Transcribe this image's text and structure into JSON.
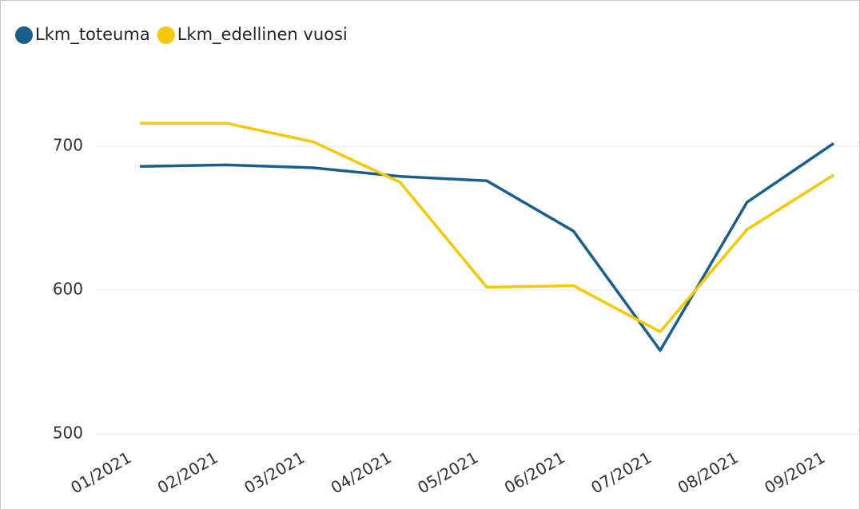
{
  "chart_data": {
    "type": "line",
    "categories": [
      "01/2021",
      "02/2021",
      "03/2021",
      "04/2021",
      "05/2021",
      "06/2021",
      "07/2021",
      "08/2021",
      "09/2021"
    ],
    "series": [
      {
        "name": "Lkm_toteuma",
        "color": "#1a5f8c",
        "values": [
          686,
          687,
          685,
          679,
          676,
          641,
          558,
          661,
          702
        ]
      },
      {
        "name": "Lkm_edellinen vuosi",
        "color": "#f5c800",
        "values": [
          716,
          716,
          703,
          675,
          602,
          603,
          571,
          642,
          680
        ]
      }
    ],
    "ylim": [
      500,
      760
    ],
    "yticks": [
      500,
      600,
      700
    ],
    "grid": true,
    "legend": "top-left"
  }
}
